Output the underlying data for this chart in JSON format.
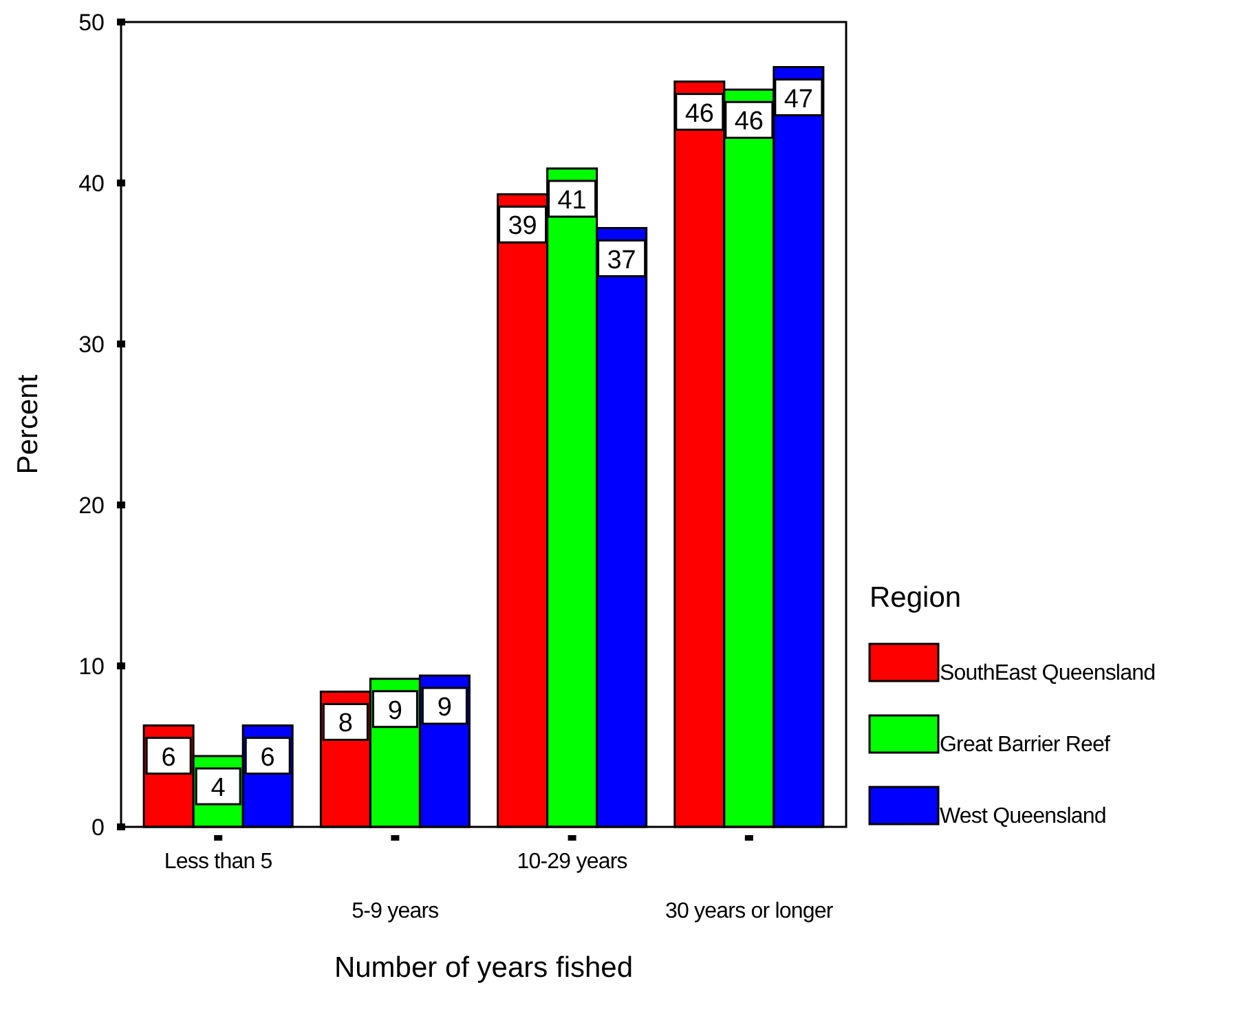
{
  "chart_data": {
    "type": "bar",
    "xlabel": "Number of years fished",
    "ylabel": "Percent",
    "legend_title": "Region",
    "legend": "right",
    "grid": false,
    "categories": [
      "Less than 5",
      "5-9 years",
      "10-29 years",
      "30 years or longer"
    ],
    "ylim": [
      0,
      50
    ],
    "yticks": [
      0,
      10,
      20,
      30,
      40,
      50
    ],
    "series": [
      {
        "name": "SouthEast Queensland",
        "color": "#ff0000",
        "values": [
          6.3,
          8.4,
          39.3,
          46.3
        ],
        "value_labels": [
          "6",
          "8",
          "39",
          "46"
        ]
      },
      {
        "name": "Great Barrier Reef",
        "color": "#00ff00",
        "values": [
          4.4,
          9.2,
          40.9,
          45.8
        ],
        "value_labels": [
          "4",
          "9",
          "41",
          "46"
        ]
      },
      {
        "name": "West Queensland",
        "color": "#0000ff",
        "values": [
          6.3,
          9.4,
          37.2,
          47.2
        ],
        "value_labels": [
          "6",
          "9",
          "37",
          "47"
        ]
      }
    ]
  }
}
